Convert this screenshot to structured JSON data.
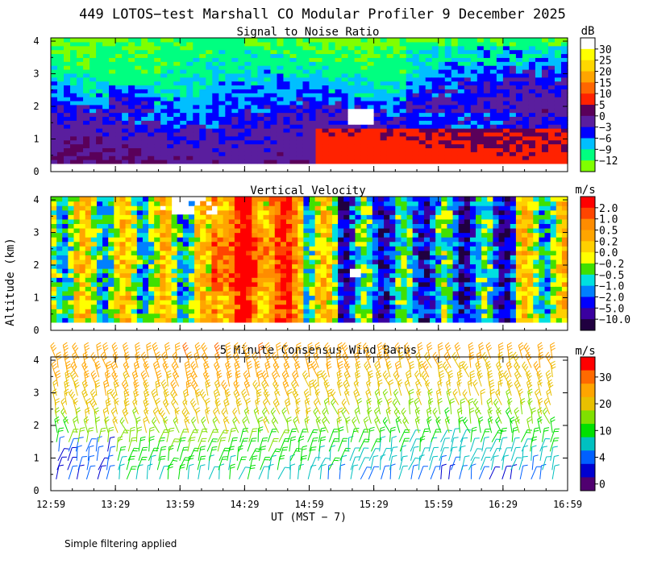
{
  "figure_title": "449 LOTOS−test Marshall CO Modular Profiler  9 December 2025",
  "footer_note": "Simple filtering applied",
  "xaxis_label": "UT  (MST − 7)",
  "yaxis_label": "Altitude (km)",
  "chart_data": [
    {
      "type": "heatmap",
      "title": "Signal to Noise Ratio",
      "colorbar_unit": "dB",
      "colorbar_ticks": [
        "30",
        "25",
        "20",
        "15",
        "10",
        "5",
        "0",
        "−3",
        "−6",
        "−9",
        "−12"
      ],
      "colors": [
        "#ffffff",
        "#ffff00",
        "#ffd700",
        "#ffa500",
        "#ff6600",
        "#ff2200",
        "#5a005a",
        "#5a1e9e",
        "#0000ff",
        "#00bfff",
        "#00ff80",
        "#80ff00"
      ],
      "x_ticks": [
        "12:59",
        "13:29",
        "13:59",
        "14:29",
        "14:59",
        "15:29",
        "15:59",
        "16:29",
        "16:59"
      ],
      "y_ticks": [
        "0",
        "1",
        "2",
        "3",
        "4"
      ],
      "ylim": [
        0,
        4.1
      ],
      "ylabel": "Altitude (km)"
    },
    {
      "type": "heatmap",
      "title": "Vertical Velocity",
      "colorbar_unit": "m/s",
      "colorbar_ticks": [
        "2.0",
        "1.0",
        "0.5",
        "0.2",
        "0.0",
        "−0.2",
        "−0.5",
        "−1.0",
        "−2.0",
        "−5.0",
        "−10.0"
      ],
      "colors": [
        "#ff0000",
        "#ff4500",
        "#ff8c00",
        "#ffa500",
        "#ffd000",
        "#ffff00",
        "#40e000",
        "#00e0e0",
        "#0080ff",
        "#0000ff",
        "#3a00a0",
        "#200040"
      ],
      "x_ticks": [
        "12:59",
        "13:29",
        "13:59",
        "14:29",
        "14:59",
        "15:29",
        "15:59",
        "16:29",
        "16:59"
      ],
      "y_ticks": [
        "0",
        "1",
        "2",
        "3",
        "4"
      ],
      "ylim": [
        0,
        4.1
      ],
      "ylabel": "Altitude (km)"
    },
    {
      "type": "scatter",
      "title": "5 Minute Consensus Wind Barbs",
      "colorbar_unit": "m/s",
      "colorbar_ticks": [
        "30",
        "20",
        "10",
        "4",
        "0"
      ],
      "colors": [
        "#ff0000",
        "#ff6a00",
        "#ffa500",
        "#e8c000",
        "#80e000",
        "#00e000",
        "#00c0c0",
        "#0060ff",
        "#0000d0",
        "#500070"
      ],
      "x_ticks": [
        "12:59",
        "13:29",
        "13:59",
        "14:29",
        "14:59",
        "15:29",
        "15:59",
        "16:29",
        "16:59"
      ],
      "y_ticks": [
        "0",
        "1",
        "2",
        "3",
        "4"
      ],
      "ylim": [
        0,
        4.1
      ],
      "xlabel": "UT  (MST − 7)",
      "ylabel": "Altitude (km)"
    }
  ]
}
